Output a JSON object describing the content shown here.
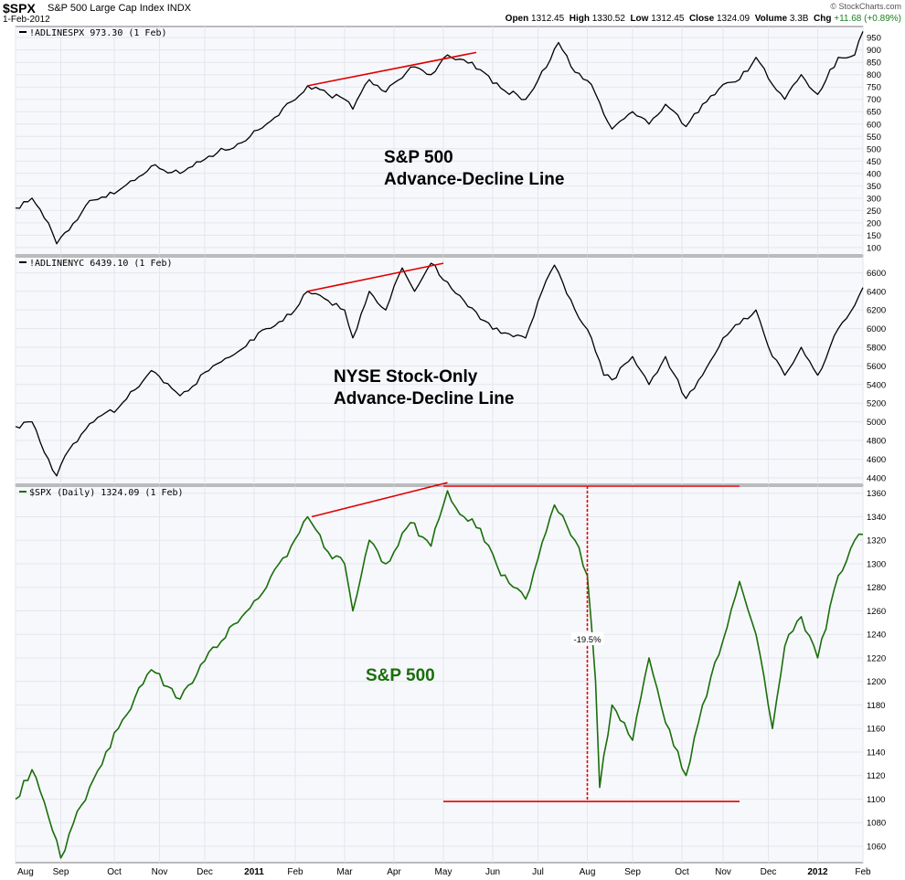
{
  "header": {
    "symbol": "$SPX",
    "name": "S&P 500 Large Cap Index",
    "exchange": "INDX",
    "date": "1-Feb-2012",
    "brand": "© StockCharts.com",
    "open_label": "Open",
    "open": "1312.45",
    "high_label": "High",
    "high": "1330.52",
    "low_label": "Low",
    "low": "1312.45",
    "close_label": "Close",
    "close": "1324.09",
    "volume_label": "Volume",
    "volume": "3.3B",
    "chg_label": "Chg",
    "chg": "+11.68 (+0.89%)"
  },
  "colors": {
    "panel_bg": "#f7f8fc",
    "grid": "#e4e6ec",
    "ad_line": "#000000",
    "price_line": "#1a6e0a",
    "trend": "#e00000",
    "price_label": "#1a6e0a"
  },
  "chart_data": [
    {
      "type": "line",
      "legend": "!ADLINESPX 973.30 (1 Feb)",
      "annotation": [
        "S&P 500",
        "Advance-Decline Line"
      ],
      "yticks": [
        100,
        150,
        200,
        250,
        300,
        350,
        400,
        450,
        500,
        550,
        600,
        650,
        700,
        750,
        800,
        850,
        900,
        950
      ],
      "ylim": [
        70,
        995
      ],
      "keypoints": [
        [
          0,
          260
        ],
        [
          4,
          300
        ],
        [
          8,
          200
        ],
        [
          10,
          115
        ],
        [
          13,
          170
        ],
        [
          18,
          290
        ],
        [
          25,
          330
        ],
        [
          33,
          430
        ],
        [
          40,
          400
        ],
        [
          47,
          470
        ],
        [
          54,
          520
        ],
        [
          61,
          600
        ],
        [
          67,
          690
        ],
        [
          71,
          755
        ],
        [
          76,
          720
        ],
        [
          80,
          700
        ],
        [
          82,
          660
        ],
        [
          86,
          780
        ],
        [
          90,
          730
        ],
        [
          96,
          830
        ],
        [
          101,
          800
        ],
        [
          105,
          880
        ],
        [
          109,
          860
        ],
        [
          113,
          820
        ],
        [
          118,
          745
        ],
        [
          124,
          700
        ],
        [
          130,
          860
        ],
        [
          132,
          930
        ],
        [
          136,
          810
        ],
        [
          140,
          760
        ],
        [
          143,
          640
        ],
        [
          145,
          580
        ],
        [
          150,
          650
        ],
        [
          154,
          600
        ],
        [
          158,
          680
        ],
        [
          163,
          590
        ],
        [
          167,
          680
        ],
        [
          172,
          760
        ],
        [
          176,
          780
        ],
        [
          180,
          870
        ],
        [
          184,
          760
        ],
        [
          187,
          700
        ],
        [
          191,
          800
        ],
        [
          195,
          720
        ],
        [
          200,
          870
        ],
        [
          204,
          880
        ],
        [
          206,
          975
        ]
      ],
      "trend": [
        [
          71,
          755
        ],
        [
          112,
          890
        ]
      ]
    },
    {
      "type": "line",
      "legend": "!ADLINENYC 6439.10 (1 Feb)",
      "annotation": [
        "NYSE Stock-Only",
        "Advance-Decline Line"
      ],
      "yticks": [
        4400,
        4600,
        4800,
        5000,
        5200,
        5400,
        5600,
        5800,
        6000,
        6200,
        6400,
        6600
      ],
      "ylim": [
        4330,
        6770
      ],
      "keypoints": [
        [
          0,
          4950
        ],
        [
          4,
          5000
        ],
        [
          8,
          4600
        ],
        [
          10,
          4420
        ],
        [
          13,
          4700
        ],
        [
          18,
          4980
        ],
        [
          25,
          5150
        ],
        [
          33,
          5550
        ],
        [
          40,
          5280
        ],
        [
          47,
          5550
        ],
        [
          54,
          5750
        ],
        [
          61,
          6000
        ],
        [
          67,
          6150
        ],
        [
          71,
          6400
        ],
        [
          76,
          6300
        ],
        [
          80,
          6200
        ],
        [
          82,
          5900
        ],
        [
          86,
          6400
        ],
        [
          90,
          6200
        ],
        [
          94,
          6650
        ],
        [
          97,
          6400
        ],
        [
          101,
          6700
        ],
        [
          105,
          6500
        ],
        [
          109,
          6300
        ],
        [
          113,
          6100
        ],
        [
          118,
          5950
        ],
        [
          124,
          5900
        ],
        [
          128,
          6400
        ],
        [
          131,
          6680
        ],
        [
          136,
          6200
        ],
        [
          140,
          5900
        ],
        [
          143,
          5500
        ],
        [
          145,
          5450
        ],
        [
          150,
          5700
        ],
        [
          154,
          5400
        ],
        [
          158,
          5700
        ],
        [
          163,
          5250
        ],
        [
          167,
          5500
        ],
        [
          172,
          5900
        ],
        [
          176,
          6050
        ],
        [
          180,
          6200
        ],
        [
          184,
          5700
        ],
        [
          187,
          5500
        ],
        [
          191,
          5800
        ],
        [
          195,
          5500
        ],
        [
          200,
          6000
        ],
        [
          204,
          6250
        ],
        [
          206,
          6440
        ]
      ],
      "trend": [
        [
          71,
          6400
        ],
        [
          104,
          6700
        ]
      ]
    },
    {
      "type": "line",
      "legend": "$SPX (Daily) 1324.09 (1 Feb)",
      "annotation": [
        "S&P 500"
      ],
      "annotation_pct": "-19.5%",
      "yticks": [
        1060,
        1080,
        1100,
        1120,
        1140,
        1160,
        1180,
        1200,
        1220,
        1240,
        1260,
        1280,
        1300,
        1320,
        1340,
        1360
      ],
      "ylim": [
        1046,
        1366
      ],
      "keypoints": [
        [
          0,
          1100
        ],
        [
          4,
          1125
        ],
        [
          8,
          1085
        ],
        [
          11,
          1050
        ],
        [
          13,
          1070
        ],
        [
          18,
          1110
        ],
        [
          25,
          1160
        ],
        [
          33,
          1210
        ],
        [
          40,
          1185
        ],
        [
          47,
          1225
        ],
        [
          54,
          1250
        ],
        [
          61,
          1280
        ],
        [
          67,
          1315
        ],
        [
          71,
          1340
        ],
        [
          76,
          1310
        ],
        [
          80,
          1300
        ],
        [
          82,
          1260
        ],
        [
          86,
          1320
        ],
        [
          90,
          1300
        ],
        [
          96,
          1335
        ],
        [
          101,
          1315
        ],
        [
          105,
          1362
        ],
        [
          109,
          1340
        ],
        [
          113,
          1330
        ],
        [
          118,
          1290
        ],
        [
          124,
          1270
        ],
        [
          130,
          1340
        ],
        [
          131,
          1350
        ],
        [
          136,
          1320
        ],
        [
          139,
          1290
        ],
        [
          141,
          1200
        ],
        [
          142,
          1110
        ],
        [
          145,
          1180
        ],
        [
          150,
          1150
        ],
        [
          154,
          1220
        ],
        [
          158,
          1165
        ],
        [
          163,
          1120
        ],
        [
          167,
          1180
        ],
        [
          172,
          1235
        ],
        [
          176,
          1285
        ],
        [
          180,
          1240
        ],
        [
          184,
          1160
        ],
        [
          187,
          1230
        ],
        [
          191,
          1255
        ],
        [
          195,
          1220
        ],
        [
          200,
          1290
        ],
        [
          204,
          1320
        ],
        [
          206,
          1325
        ]
      ],
      "trend": [
        [
          72,
          1340
        ],
        [
          105,
          1369
        ]
      ],
      "resistance": [
        [
          104,
          1366
        ],
        [
          176,
          1366
        ]
      ],
      "support": [
        [
          104,
          1098
        ],
        [
          176,
          1098
        ]
      ],
      "drop_line": [
        [
          139,
          1366
        ],
        [
          139,
          1098
        ]
      ]
    }
  ],
  "xaxis": {
    "days_total": 207,
    "ticks": [
      {
        "label": "Aug",
        "day": 0,
        "bold": false
      },
      {
        "label": "Sep",
        "day": 11,
        "bold": false
      },
      {
        "label": "Oct",
        "day": 24,
        "bold": false
      },
      {
        "label": "Nov",
        "day": 35,
        "bold": false
      },
      {
        "label": "Dec",
        "day": 46,
        "bold": false
      },
      {
        "label": "2011",
        "day": 58,
        "bold": true
      },
      {
        "label": "Feb",
        "day": 68,
        "bold": false
      },
      {
        "label": "Mar",
        "day": 80,
        "bold": false
      },
      {
        "label": "Apr",
        "day": 92,
        "bold": false
      },
      {
        "label": "May",
        "day": 104,
        "bold": false
      },
      {
        "label": "Jun",
        "day": 116,
        "bold": false
      },
      {
        "label": "Jul",
        "day": 127,
        "bold": false
      },
      {
        "label": "Aug",
        "day": 139,
        "bold": false
      },
      {
        "label": "Sep",
        "day": 150,
        "bold": false
      },
      {
        "label": "Oct",
        "day": 162,
        "bold": false
      },
      {
        "label": "Nov",
        "day": 172,
        "bold": false
      },
      {
        "label": "Dec",
        "day": 183,
        "bold": false
      },
      {
        "label": "2012",
        "day": 195,
        "bold": true
      },
      {
        "label": "Feb",
        "day": 206,
        "bold": false
      }
    ]
  }
}
